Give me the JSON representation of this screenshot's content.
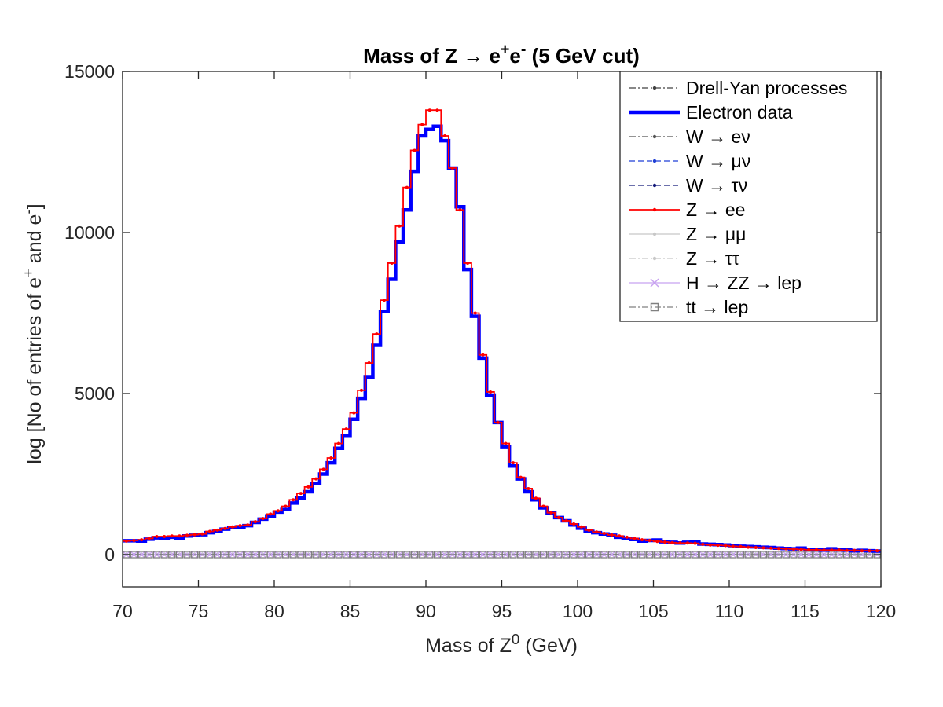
{
  "chart_data": {
    "type": "line",
    "style": "step histogram",
    "title": "Mass of Z → e+e- (5 GeV cut)",
    "xlabel": "Mass of Z0 (GeV)",
    "ylabel": "log [No of entries of e+ and e-]",
    "xlim": [
      70,
      120
    ],
    "ylim": [
      -1000,
      15000
    ],
    "xticks": [
      70,
      75,
      80,
      85,
      90,
      95,
      100,
      105,
      110,
      115,
      120
    ],
    "yticks": [
      0,
      5000,
      10000,
      15000
    ],
    "grid": false,
    "legend_position": "top-right",
    "bin_width": 0.5,
    "x": [
      70,
      70.5,
      71,
      71.5,
      72,
      72.5,
      73,
      73.5,
      74,
      74.5,
      75,
      75.5,
      76,
      76.5,
      77,
      77.5,
      78,
      78.5,
      79,
      79.5,
      80,
      80.5,
      81,
      81.5,
      82,
      82.5,
      83,
      83.5,
      84,
      84.5,
      85,
      85.5,
      86,
      86.5,
      87,
      87.5,
      88,
      88.5,
      89,
      89.5,
      90,
      90.5,
      91,
      91.5,
      92,
      92.5,
      93,
      93.5,
      94,
      94.5,
      95,
      95.5,
      96,
      96.5,
      97,
      97.5,
      98,
      98.5,
      99,
      99.5,
      100,
      100.5,
      101,
      101.5,
      102,
      102.5,
      103,
      103.5,
      104,
      104.5,
      105,
      105.5,
      106,
      106.5,
      107,
      107.5,
      108,
      108.5,
      109,
      109.5,
      110,
      110.5,
      111,
      111.5,
      112,
      112.5,
      113,
      113.5,
      114,
      114.5,
      115,
      115.5,
      116,
      116.5,
      117,
      117.5,
      118,
      118.5,
      119,
      119.5
    ],
    "series": [
      {
        "name": "Drell-Yan processes",
        "color": "#404040",
        "dash": "dashdot",
        "marker": "dot",
        "values": [
          5,
          5,
          5,
          5,
          5,
          5,
          5,
          5,
          5,
          5,
          5,
          5,
          5,
          5,
          5,
          5,
          5,
          5,
          5,
          5,
          5,
          5,
          5,
          5,
          5,
          5,
          5,
          5,
          5,
          5,
          5,
          5,
          5,
          5,
          5,
          5,
          5,
          5,
          5,
          5,
          5,
          5,
          5,
          5,
          5,
          5,
          5,
          5,
          5,
          5,
          5,
          5,
          5,
          5,
          5,
          5,
          5,
          5,
          5,
          5,
          5,
          5,
          5,
          5,
          5,
          5,
          5,
          5,
          5,
          5,
          5,
          5,
          5,
          5,
          5,
          5,
          5,
          5,
          5,
          5,
          5,
          5,
          5,
          5,
          5,
          5,
          5,
          5,
          5,
          5,
          5,
          5,
          5,
          5,
          5,
          5,
          5,
          5,
          5,
          5
        ]
      },
      {
        "name": "Electron data",
        "color": "#0000ff",
        "dash": "solid",
        "marker": "none",
        "width": 4.5,
        "values": [
          430,
          430,
          420,
          480,
          520,
          500,
          540,
          510,
          580,
          600,
          620,
          680,
          720,
          790,
          840,
          860,
          900,
          1000,
          1100,
          1200,
          1320,
          1400,
          1600,
          1750,
          1950,
          2200,
          2500,
          2850,
          3300,
          3700,
          4200,
          4850,
          5500,
          6500,
          7550,
          8550,
          9700,
          10700,
          11900,
          13000,
          13200,
          13300,
          12850,
          12000,
          10800,
          8850,
          7400,
          6100,
          4950,
          4100,
          3350,
          2750,
          2350,
          1950,
          1700,
          1450,
          1300,
          1150,
          1050,
          920,
          820,
          720,
          680,
          640,
          600,
          540,
          500,
          470,
          420,
          440,
          450,
          400,
          380,
          360,
          380,
          400,
          330,
          320,
          310,
          300,
          280,
          260,
          250,
          240,
          230,
          220,
          200,
          190,
          180,
          200,
          160,
          150,
          140,
          180,
          150,
          140,
          120,
          130,
          120,
          110
        ]
      },
      {
        "name": "W → eν",
        "color": "#555555",
        "dash": "dashdot",
        "marker": "dot",
        "values": [
          3,
          3,
          3,
          3,
          3,
          3,
          3,
          3,
          3,
          3,
          3,
          3,
          3,
          3,
          3,
          3,
          3,
          3,
          3,
          3,
          3,
          3,
          3,
          3,
          3,
          3,
          3,
          3,
          3,
          3,
          3,
          3,
          3,
          3,
          3,
          3,
          3,
          3,
          3,
          3,
          3,
          3,
          3,
          3,
          3,
          3,
          3,
          3,
          3,
          3,
          3,
          3,
          3,
          3,
          3,
          3,
          3,
          3,
          3,
          3,
          3,
          3,
          3,
          3,
          3,
          3,
          3,
          3,
          3,
          3,
          3,
          3,
          3,
          3,
          3,
          3,
          3,
          3,
          3,
          3,
          3,
          3,
          3,
          3,
          3,
          3,
          3,
          3,
          3,
          3,
          3,
          3,
          3,
          3,
          3,
          3,
          3,
          3,
          3,
          3
        ]
      },
      {
        "name": "W → μν",
        "color": "#1f3fd6",
        "dash": "dashed",
        "marker": "dot",
        "values": [
          2,
          2,
          2,
          2,
          2,
          2,
          2,
          2,
          2,
          2,
          2,
          2,
          2,
          2,
          2,
          2,
          2,
          2,
          2,
          2,
          2,
          2,
          2,
          2,
          2,
          2,
          2,
          2,
          2,
          2,
          2,
          2,
          2,
          2,
          2,
          2,
          2,
          2,
          2,
          2,
          2,
          2,
          2,
          2,
          2,
          2,
          2,
          2,
          2,
          2,
          2,
          2,
          2,
          2,
          2,
          2,
          2,
          2,
          2,
          2,
          2,
          2,
          2,
          2,
          2,
          2,
          2,
          2,
          2,
          2,
          2,
          2,
          2,
          2,
          2,
          2,
          2,
          2,
          2,
          2,
          2,
          2,
          2,
          2,
          2,
          2,
          2,
          2,
          2,
          2,
          2,
          2,
          2,
          2,
          2,
          2,
          2,
          2,
          2,
          2
        ]
      },
      {
        "name": "W → τν",
        "color": "#141a7a",
        "dash": "dashed",
        "marker": "dot",
        "values": [
          1,
          1,
          1,
          1,
          1,
          1,
          1,
          1,
          1,
          1,
          1,
          1,
          1,
          1,
          1,
          1,
          1,
          1,
          1,
          1,
          1,
          1,
          1,
          1,
          1,
          1,
          1,
          1,
          1,
          1,
          1,
          1,
          1,
          1,
          1,
          1,
          1,
          1,
          1,
          1,
          1,
          1,
          1,
          1,
          1,
          1,
          1,
          1,
          1,
          1,
          1,
          1,
          1,
          1,
          1,
          1,
          1,
          1,
          1,
          1,
          1,
          1,
          1,
          1,
          1,
          1,
          1,
          1,
          1,
          1,
          1,
          1,
          1,
          1,
          1,
          1,
          1,
          1,
          1,
          1,
          1,
          1,
          1,
          1,
          1,
          1,
          1,
          1,
          1,
          1,
          1,
          1,
          1,
          1,
          1,
          1,
          1,
          1,
          1,
          1
        ]
      },
      {
        "name": "Z → ee",
        "color": "#ff0000",
        "dash": "solid",
        "marker": "dot",
        "width": 1.8,
        "values": [
          420,
          440,
          460,
          500,
          560,
          560,
          580,
          580,
          600,
          620,
          640,
          720,
          760,
          810,
          860,
          900,
          920,
          1020,
          1120,
          1260,
          1360,
          1500,
          1700,
          1900,
          2100,
          2350,
          2650,
          3000,
          3450,
          3900,
          4400,
          5100,
          5950,
          6850,
          7900,
          9050,
          10200,
          11400,
          12550,
          13350,
          13800,
          13800,
          13000,
          12000,
          10700,
          9050,
          7500,
          6200,
          5050,
          4100,
          3450,
          2850,
          2400,
          2050,
          1750,
          1500,
          1300,
          1150,
          1050,
          950,
          860,
          760,
          700,
          660,
          610,
          580,
          540,
          500,
          460,
          440,
          410,
          390,
          370,
          360,
          360,
          350,
          320,
          300,
          290,
          280,
          260,
          250,
          230,
          220,
          210,
          200,
          190,
          180,
          170,
          160,
          150,
          150,
          140,
          140,
          140,
          130,
          130,
          120,
          120,
          120
        ]
      },
      {
        "name": "Z → μμ",
        "color": "#c8c8c8",
        "dash": "solid",
        "marker": "dot",
        "values": [
          0,
          0,
          0,
          0,
          0,
          0,
          0,
          0,
          0,
          0,
          0,
          0,
          0,
          0,
          0,
          0,
          0,
          0,
          0,
          0,
          0,
          0,
          0,
          0,
          0,
          0,
          0,
          0,
          0,
          0,
          0,
          0,
          0,
          0,
          0,
          0,
          0,
          0,
          0,
          0,
          0,
          0,
          0,
          0,
          0,
          0,
          0,
          0,
          0,
          0,
          0,
          0,
          0,
          0,
          0,
          0,
          0,
          0,
          0,
          0,
          0,
          0,
          0,
          0,
          0,
          0,
          0,
          0,
          0,
          0,
          0,
          0,
          0,
          0,
          0,
          0,
          0,
          0,
          0,
          0,
          0,
          0,
          0,
          0,
          0,
          0,
          0,
          0,
          0,
          0,
          0,
          0,
          0,
          0,
          0,
          0,
          0,
          0,
          0,
          0
        ]
      },
      {
        "name": "Z → ττ",
        "color": "#c8c8c8",
        "dash": "dashdot",
        "marker": "dot",
        "values": [
          0,
          0,
          0,
          0,
          0,
          0,
          0,
          0,
          0,
          0,
          0,
          0,
          0,
          0,
          0,
          0,
          0,
          0,
          0,
          0,
          0,
          0,
          0,
          0,
          0,
          0,
          0,
          0,
          0,
          0,
          0,
          0,
          0,
          0,
          0,
          0,
          0,
          0,
          0,
          0,
          0,
          0,
          0,
          0,
          0,
          0,
          0,
          0,
          0,
          0,
          0,
          0,
          0,
          0,
          0,
          0,
          0,
          0,
          0,
          0,
          0,
          0,
          0,
          0,
          0,
          0,
          0,
          0,
          0,
          0,
          0,
          0,
          0,
          0,
          0,
          0,
          0,
          0,
          0,
          0,
          0,
          0,
          0,
          0,
          0,
          0,
          0,
          0,
          0,
          0,
          0,
          0,
          0,
          0,
          0,
          0,
          0,
          0,
          0,
          0
        ]
      },
      {
        "name": "H → ZZ → lep",
        "color": "#c8a2f0",
        "dash": "solid",
        "marker": "x",
        "values": [
          0,
          0,
          0,
          0,
          0,
          0,
          0,
          0,
          0,
          0,
          0,
          0,
          0,
          0,
          0,
          0,
          0,
          0,
          0,
          0,
          0,
          0,
          0,
          0,
          0,
          0,
          0,
          0,
          0,
          0,
          0,
          0,
          0,
          0,
          0,
          0,
          0,
          0,
          0,
          0,
          0,
          0,
          0,
          0,
          0,
          0,
          0,
          0,
          0,
          0,
          0,
          0,
          0,
          0,
          0,
          0,
          0,
          0,
          0,
          0,
          0,
          0,
          0,
          0,
          0,
          0,
          0,
          0,
          0,
          0,
          0,
          0,
          0,
          0,
          0,
          0,
          0,
          0,
          0,
          0,
          0,
          0,
          0,
          0,
          0,
          0,
          0,
          0,
          0,
          0,
          0,
          0,
          0,
          0,
          0,
          0,
          0,
          0,
          0,
          0
        ]
      },
      {
        "name": "tt → lep",
        "color": "#808080",
        "dash": "dashdot",
        "marker": "square",
        "values": [
          0,
          0,
          0,
          0,
          0,
          0,
          0,
          0,
          0,
          0,
          0,
          0,
          0,
          0,
          0,
          0,
          0,
          0,
          0,
          0,
          0,
          0,
          0,
          0,
          0,
          0,
          0,
          0,
          0,
          0,
          0,
          0,
          0,
          0,
          0,
          0,
          0,
          0,
          0,
          0,
          0,
          0,
          0,
          0,
          0,
          0,
          0,
          0,
          0,
          0,
          0,
          0,
          0,
          0,
          0,
          0,
          0,
          0,
          0,
          0,
          0,
          0,
          0,
          0,
          0,
          0,
          0,
          0,
          0,
          0,
          0,
          0,
          0,
          0,
          0,
          0,
          0,
          0,
          0,
          0,
          0,
          0,
          0,
          0,
          0,
          0,
          0,
          0,
          0,
          0,
          0,
          0,
          0,
          0,
          0,
          0,
          0,
          0,
          0,
          0
        ]
      }
    ]
  }
}
